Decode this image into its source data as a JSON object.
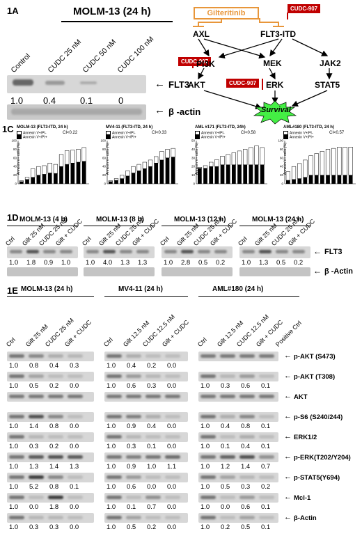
{
  "panel_1a": {
    "label": "1A",
    "title": "MOLM-13 (24 h)",
    "lanes": [
      "Control",
      "CUDC 25 nM",
      "CUDC 50 nM",
      "CUDC 100 nM"
    ],
    "values": [
      "1.0",
      "0.4",
      "0.1",
      "0"
    ],
    "proteins": [
      "FLT3",
      "β -actin"
    ]
  },
  "panel_1b": {
    "label": "1B",
    "gilteritinib": "Gilteritinib",
    "cudc": "CUDC-907",
    "nodes": {
      "axl": "AXL",
      "flt3": "FLT3-ITD",
      "pi3k": "PI3K",
      "mek": "MEK",
      "jak2": "JAK2",
      "akt": "AKT",
      "erk": "ERK",
      "stat5": "STAT5",
      "survival": "Survival"
    }
  },
  "panel_1c": {
    "label": "1C",
    "charts": [
      {
        "title": "MOLM-13 (FLT3-ITD, 24 h)",
        "ci": "CI<0.22",
        "legend": [
          "Annexin V+/PI-",
          "Annexin V+/PI+"
        ],
        "ylabel": "Annexin V+ cells (%)"
      },
      {
        "title": "MV4-11 (FLT3-ITD, 24 h)",
        "ci": "CI<0.33",
        "legend": [
          "Annexin V+/PI-",
          "Annexin V+/PI+"
        ],
        "ylabel": "Annexin V+ cells (%)"
      },
      {
        "title": "AML #171 (FLT3-ITD, 24h)",
        "ci": "CI<0.58",
        "legend": [
          "Annexin V+/PI-",
          "Annexin V+/PI+"
        ],
        "ylabel": "Annexin V+ cells (%)"
      },
      {
        "title": "AML#180 (FLT3-ITD, 24 h)",
        "ci": "CI<0.57",
        "legend": [
          "Annexin V+/PI-",
          "Annexin V+/PI+"
        ],
        "ylabel": "Annexin V+ cells (%)"
      }
    ]
  },
  "chart_data": [
    {
      "type": "bar",
      "title": "MOLM-13 (FLT3-ITD, 24 h)",
      "ylim": [
        0,
        100
      ],
      "yticks": [
        "0",
        "20",
        "40",
        "60",
        "80",
        "100"
      ],
      "series": [
        {
          "name": "Annexin V+/PI-",
          "values": [
            5,
            10,
            15,
            20,
            22,
            25,
            24,
            40,
            45,
            48,
            50,
            52
          ]
        },
        {
          "name": "Annexin V+/PI+",
          "values": [
            2,
            5,
            20,
            20,
            20,
            23,
            21,
            28,
            32,
            30,
            30,
            32
          ]
        }
      ]
    },
    {
      "type": "bar",
      "title": "MV4-11 (FLT3-ITD, 24 h)",
      "ylim": [
        0,
        100
      ],
      "yticks": [
        "0",
        "20",
        "40",
        "60",
        "80",
        "100"
      ],
      "series": [
        {
          "name": "Annexin V+/PI-",
          "values": [
            5,
            8,
            12,
            18,
            25,
            30,
            35,
            40,
            48,
            55,
            60,
            62
          ]
        },
        {
          "name": "Annexin V+/PI+",
          "values": [
            2,
            4,
            8,
            12,
            15,
            15,
            15,
            15,
            15,
            20,
            20,
            20
          ]
        }
      ]
    },
    {
      "type": "bar",
      "title": "AML #171 (FLT3-ITD, 24h)",
      "ylim": [
        0,
        50
      ],
      "yticks": [
        "0",
        "10",
        "20",
        "30",
        "40",
        "50"
      ],
      "series": [
        {
          "name": "Annexin V+/PI-",
          "values": [
            18,
            18,
            20,
            20,
            22,
            22,
            22,
            22,
            22,
            22,
            22,
            22
          ]
        },
        {
          "name": "Annexin V+/PI+",
          "values": [
            1,
            3,
            5,
            8,
            10,
            12,
            14,
            16,
            18,
            20,
            22,
            20
          ]
        }
      ]
    },
    {
      "type": "bar",
      "title": "AML#180 (FLT3-ITD, 24 h)",
      "ylim": [
        0,
        100
      ],
      "yticks": [
        "0",
        "20",
        "40",
        "60",
        "80",
        "100"
      ],
      "series": [
        {
          "name": "Annexin V+/PI-",
          "values": [
            8,
            10,
            12,
            15,
            20,
            20,
            20,
            20,
            20,
            20,
            20,
            20
          ]
        },
        {
          "name": "Annexin V+/PI+",
          "values": [
            20,
            30,
            35,
            40,
            45,
            50,
            55,
            60,
            62,
            65,
            65,
            65
          ]
        }
      ]
    }
  ],
  "panel_1d": {
    "label": "1D",
    "groups": [
      {
        "title": "MOLM-13 (4 h)",
        "lanes": [
          "Ctrl",
          "Gilt  25 nM",
          "CUDC 25 nM",
          "Gilt + CUDC"
        ],
        "values": [
          "1.0",
          "1.8",
          "0.9",
          "1.0"
        ]
      },
      {
        "title": "MOLM-13 (8 h)",
        "lanes": [
          "Ctrl",
          "Gilt  25 nM",
          "CUDC 25 nM",
          "Gilt + CUDC"
        ],
        "values": [
          "1.0",
          "4.0",
          "1.3",
          "1.3"
        ]
      },
      {
        "title": "MOLM-13 (12 h)",
        "lanes": [
          "Ctrl",
          "Gilt  25 nM",
          "CUDC 25 nM",
          "Gilt + CUDC"
        ],
        "values": [
          "1.0",
          "2.8",
          "0.5",
          "0.2"
        ]
      },
      {
        "title": "MOLM-13 (24 h)",
        "lanes": [
          "Ctrl",
          "Gilt  25 nM",
          "CUDC 25 nM",
          "Gilt + CUDC"
        ],
        "values": [
          "1.0",
          "1.3",
          "0.5",
          "0.2"
        ]
      }
    ],
    "proteins": [
      "FLT3",
      "β -Actin"
    ]
  },
  "panel_1e": {
    "label": "1E",
    "groups": [
      {
        "title": "MOLM-13 (24 h)",
        "lanes": [
          "Ctrl",
          "Gilt  25 nM",
          "CUDC 25 nM",
          "Gilt + CUDC"
        ]
      },
      {
        "title": "MV4-11 (24 h)",
        "lanes": [
          "Ctrl",
          "Gilt  12.5 nM",
          "CUDC 12.5 nM",
          "Gilt + CUDC"
        ]
      },
      {
        "title": "AML#180 (24 h)",
        "lanes": [
          "Ctrl",
          "Gilt  12.5 nM",
          "CUDC 12.5 nM",
          "Gilt + CUDC",
          "Positive Ctrl"
        ]
      }
    ],
    "rows": [
      {
        "protein": "p-AKT (S473)",
        "g1": [
          "1.0",
          "0.8",
          "0.4",
          "0.3"
        ],
        "g2": [
          "1.0",
          "0.4",
          "0.2",
          "0.0"
        ],
        "g3": []
      },
      {
        "protein": "p-AKT (T308)",
        "g1": [
          "1.0",
          "0.5",
          "0.2",
          "0.0"
        ],
        "g2": [
          "1.0",
          "0.6",
          "0.3",
          "0.0"
        ],
        "g3": [
          "1.0",
          "0.3",
          "0.6",
          "0.1"
        ]
      },
      {
        "protein": "AKT",
        "g1": [],
        "g2": [],
        "g3": []
      },
      {
        "protein": "p-S6 (S240/244)",
        "g1": [
          "1.0",
          "1.4",
          "0.8",
          "0.0"
        ],
        "g2": [
          "1.0",
          "0.9",
          "0.4",
          "0.0"
        ],
        "g3": [
          "1.0",
          "0.4",
          "0.8",
          "0.1"
        ]
      },
      {
        "protein": "ERK1/2",
        "g1": [
          "1.0",
          "0.3",
          "0.2",
          "0.0"
        ],
        "g2": [
          "1.0",
          "0.3",
          "0.1",
          "0.0"
        ],
        "g3": [
          "1.0",
          "0.1",
          "0.4",
          "0.1"
        ]
      },
      {
        "protein": "p-ERK(T202/Y204)",
        "g1": [
          "1.0",
          "1.3",
          "1.4",
          "1.3"
        ],
        "g2": [
          "1.0",
          "0.9",
          "1.0",
          "1.1"
        ],
        "g3": [
          "1.0",
          "1.2",
          "1.4",
          "0.7"
        ]
      },
      {
        "protein": "p-STAT5(Y694)",
        "g1": [
          "1.0",
          "5.2",
          "0.8",
          "0.1"
        ],
        "g2": [
          "1.0",
          "0.6",
          "0.0",
          "0.0"
        ],
        "g3": [
          "1.0",
          "0.5",
          "0.3",
          "0.2"
        ]
      },
      {
        "protein": "Mcl-1",
        "g1": [
          "1.0",
          "0.0",
          "1.8",
          "0.0"
        ],
        "g2": [
          "1.0",
          "0.1",
          "0.7",
          "0.0"
        ],
        "g3": [
          "1.0",
          "0.0",
          "0.6",
          "0.1"
        ]
      },
      {
        "protein": "β-Actin",
        "g1": [
          "1.0",
          "0.3",
          "0.3",
          "0.0"
        ],
        "g2": [
          "1.0",
          "0.5",
          "0.2",
          "0.0"
        ],
        "g3": [
          "1.0",
          "0.2",
          "0.5",
          "0.1"
        ]
      }
    ]
  }
}
